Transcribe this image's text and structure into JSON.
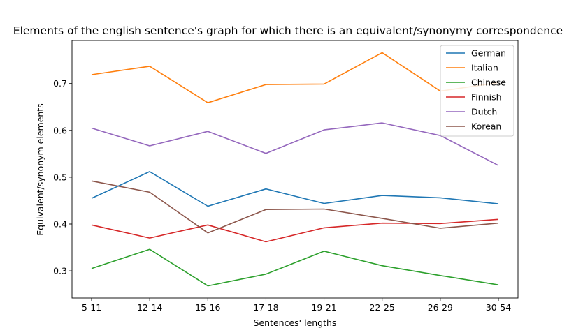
{
  "chart_data": {
    "type": "line",
    "title": "Elements of the english sentence's graph for which there is an equivalent/synonymy correspondence",
    "xlabel": "Sentences' lengths",
    "ylabel": "Equivalent/synonym elements",
    "categories": [
      "5-11",
      "12-14",
      "15-16",
      "17-18",
      "19-21",
      "22-25",
      "26-29",
      "30-54"
    ],
    "ylim": [
      0.242,
      0.792
    ],
    "yticks": [
      0.3,
      0.4,
      0.5,
      0.6,
      0.7
    ],
    "ytick_labels": [
      "0.3",
      "0.4",
      "0.5",
      "0.6",
      "0.7"
    ],
    "grid": false,
    "legend_position": "top-right",
    "series": [
      {
        "name": "German",
        "color": "#1f77b4",
        "values": [
          0.455,
          0.512,
          0.438,
          0.475,
          0.444,
          0.461,
          0.456,
          0.443
        ]
      },
      {
        "name": "Italian",
        "color": "#ff7f0e",
        "values": [
          0.719,
          0.737,
          0.659,
          0.698,
          0.699,
          0.766,
          0.684,
          0.702
        ]
      },
      {
        "name": "Chinese",
        "color": "#2ca02c",
        "values": [
          0.305,
          0.346,
          0.268,
          0.293,
          0.342,
          0.311,
          0.29,
          0.27
        ]
      },
      {
        "name": "Finnish",
        "color": "#d62728",
        "values": [
          0.398,
          0.37,
          0.398,
          0.362,
          0.392,
          0.402,
          0.401,
          0.41
        ]
      },
      {
        "name": "Dutch",
        "color": "#9467bd",
        "values": [
          0.605,
          0.567,
          0.598,
          0.551,
          0.601,
          0.616,
          0.589,
          0.525
        ]
      },
      {
        "name": "Korean",
        "color": "#8c564b",
        "values": [
          0.492,
          0.468,
          0.381,
          0.431,
          0.432,
          0.412,
          0.391,
          0.402
        ]
      }
    ]
  }
}
